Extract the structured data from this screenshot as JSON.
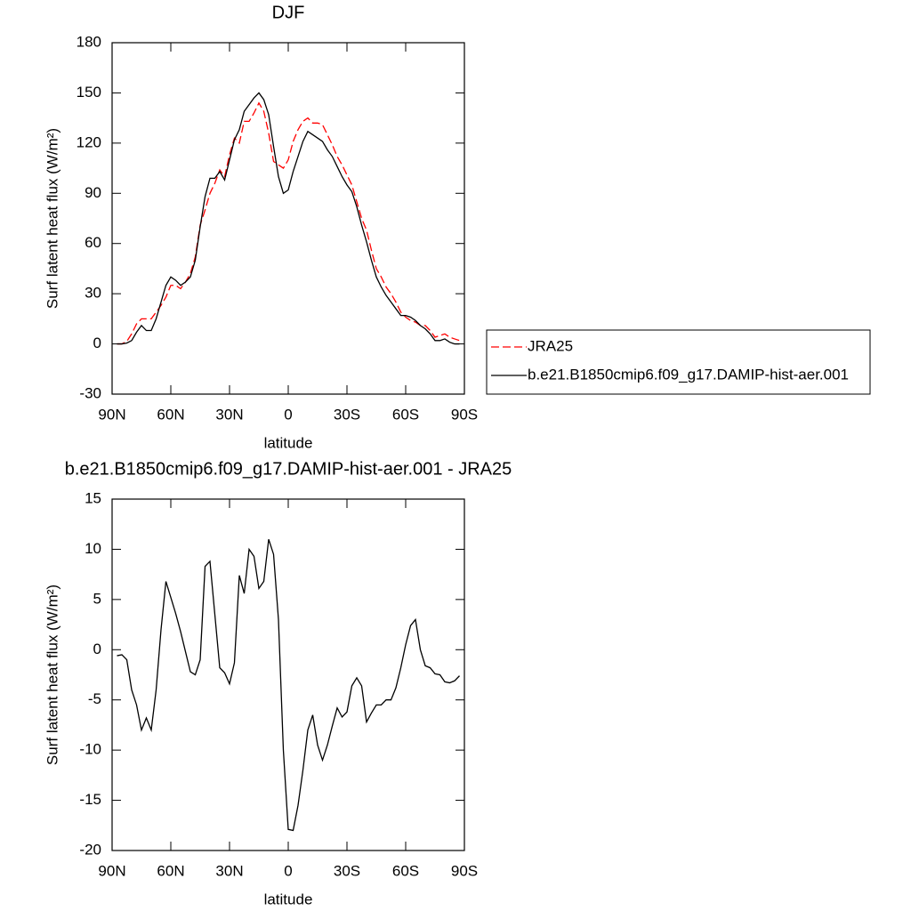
{
  "chart_data": [
    {
      "type": "line",
      "title": "DJF",
      "xlabel": "latitude",
      "ylabel": "Surf latent heat flux (W/m²)",
      "x": [
        87.5,
        85,
        82.5,
        80,
        77.5,
        75,
        72.5,
        70,
        67.5,
        65,
        62.5,
        60,
        57.5,
        55,
        52.5,
        50,
        47.5,
        45,
        42.5,
        40,
        37.5,
        35,
        32.5,
        30,
        27.5,
        25,
        22.5,
        20,
        17.5,
        15,
        12.5,
        10,
        7.5,
        5,
        2.5,
        0,
        -2.5,
        -5,
        -7.5,
        -10,
        -12.5,
        -15,
        -17.5,
        -20,
        -22.5,
        -25,
        -27.5,
        -30,
        -32.5,
        -35,
        -37.5,
        -40,
        -42.5,
        -45,
        -47.5,
        -50,
        -52.5,
        -55,
        -57.5,
        -60,
        -62.5,
        -65,
        -67.5,
        -70,
        -72.5,
        -75,
        -77.5,
        -80,
        -82.5,
        -85,
        -87.5
      ],
      "series": [
        {
          "name": "JRA25",
          "color": "#ff0000",
          "style": "dashed",
          "values": [
            0,
            0,
            1.5,
            6,
            12,
            15,
            15,
            15,
            19,
            23,
            28,
            35,
            35,
            33,
            37,
            42,
            52,
            71,
            80,
            90,
            96,
            104,
            100,
            113,
            123,
            120,
            133,
            133,
            138,
            144,
            139,
            126,
            109,
            107,
            105,
            110,
            121,
            128,
            133,
            135,
            132,
            132,
            131,
            125,
            119,
            112,
            107,
            101,
            95,
            85,
            75,
            68,
            56,
            45,
            40,
            34,
            30,
            25,
            19,
            16,
            14,
            13,
            11,
            11,
            8,
            4,
            5,
            6,
            4,
            3,
            2
          ]
        },
        {
          "name": "b.e21.B1850cmip6.f09_g17.DAMIP-hist-aer.001",
          "color": "#000000",
          "style": "solid",
          "values": [
            0,
            0,
            0.5,
            2,
            7,
            11,
            8,
            8,
            15,
            25,
            35,
            40,
            38,
            35,
            37,
            40,
            50,
            70,
            88,
            99,
            99,
            103,
            98,
            110,
            122,
            128,
            139,
            143,
            147,
            150,
            146,
            137,
            118,
            100,
            90,
            92,
            103,
            112,
            121,
            127,
            125,
            123,
            121,
            116,
            112,
            106,
            100,
            95,
            91,
            82,
            71,
            61,
            50,
            40,
            34,
            29,
            25,
            21,
            17,
            17,
            16,
            14,
            11,
            9,
            6,
            2,
            2,
            3,
            1,
            0,
            0
          ]
        }
      ],
      "xlim": [
        90,
        -90
      ],
      "xticks": [
        {
          "value": 90,
          "label": "90N"
        },
        {
          "value": 60,
          "label": "60N"
        },
        {
          "value": 30,
          "label": "30N"
        },
        0,
        {
          "value": -30,
          "label": "30S"
        },
        {
          "value": -60,
          "label": "60S"
        },
        {
          "value": -90,
          "label": "90S"
        }
      ],
      "ylim": [
        -30,
        180
      ],
      "yticks": [
        -30,
        0,
        30,
        60,
        90,
        120,
        150,
        180
      ],
      "legend": "right"
    },
    {
      "type": "line",
      "title": "b.e21.B1850cmip6.f09_g17.DAMIP-hist-aer.001 - JRA25",
      "xlabel": "latitude",
      "ylabel": "Surf latent heat flux (W/m²)",
      "x": [
        87.5,
        85,
        82.5,
        80,
        77.5,
        75,
        72.5,
        70,
        67.5,
        65,
        62.5,
        60,
        57.5,
        55,
        52.5,
        50,
        47.5,
        45,
        42.5,
        40,
        37.5,
        35,
        32.5,
        30,
        27.5,
        25,
        22.5,
        20,
        17.5,
        15,
        12.5,
        10,
        7.5,
        5,
        2.5,
        0,
        -2.5,
        -5,
        -7.5,
        -10,
        -12.5,
        -15,
        -17.5,
        -20,
        -22.5,
        -25,
        -27.5,
        -30,
        -32.5,
        -35,
        -37.5,
        -40,
        -42.5,
        -45,
        -47.5,
        -50,
        -52.5,
        -55,
        -57.5,
        -60,
        -62.5,
        -65,
        -67.5,
        -70,
        -72.5,
        -75,
        -77.5,
        -80,
        -82.5,
        -85,
        -87.5
      ],
      "series": [
        {
          "color": "#000000",
          "style": "solid",
          "values": [
            -0.6,
            -0.5,
            -1,
            -4,
            -5.5,
            -8,
            -6.8,
            -8,
            -4,
            2,
            6.8,
            5.2,
            3.6,
            1.8,
            -0.2,
            -2.2,
            -2.5,
            -1,
            8.3,
            8.8,
            3.5,
            -1.8,
            -2.3,
            -3.4,
            -1.3,
            7.4,
            5.6,
            10,
            9.3,
            6.1,
            6.8,
            11,
            9.5,
            3,
            -10,
            -17.9,
            -18,
            -15.5,
            -12,
            -8,
            -6.5,
            -9.5,
            -11,
            -9.5,
            -7.6,
            -5.8,
            -6.7,
            -6.2,
            -3.6,
            -2.8,
            -3.6,
            -7.2,
            -6.3,
            -5.5,
            -5.5,
            -5,
            -5,
            -3.8,
            -1.8,
            0.5,
            2.4,
            3,
            0,
            -1.6,
            -1.8,
            -2.4,
            -2.5,
            -3.2,
            -3.3,
            -3.1,
            -2.6
          ]
        }
      ],
      "xlim": [
        90,
        -90
      ],
      "xticks": [
        {
          "value": 90,
          "label": "90N"
        },
        {
          "value": 60,
          "label": "60N"
        },
        {
          "value": 30,
          "label": "30N"
        },
        0,
        {
          "value": -30,
          "label": "30S"
        },
        {
          "value": -60,
          "label": "60S"
        },
        {
          "value": -90,
          "label": "90S"
        }
      ],
      "ylim": [
        -20,
        15
      ],
      "yticks": [
        -20,
        -15,
        -10,
        -5,
        0,
        5,
        10,
        15
      ]
    }
  ]
}
